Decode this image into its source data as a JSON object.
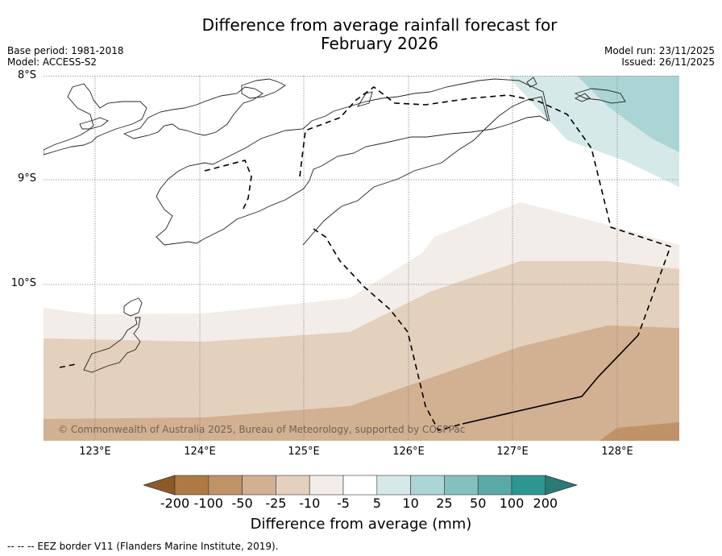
{
  "title": {
    "line1": "Difference from average rainfall forecast for",
    "line2": "February 2026"
  },
  "meta_left": {
    "base_period": "Base period: 1981-2018",
    "model": "Model: ACCESS-S2"
  },
  "meta_right": {
    "model_run": "Model run: 23/11/2025",
    "issued": "Issued: 26/11/2025"
  },
  "map": {
    "lat_labels": [
      "8°S",
      "9°S",
      "10°S"
    ],
    "lon_labels": [
      "123°E",
      "124°E",
      "125°E",
      "126°E",
      "127°E",
      "128°E"
    ],
    "extent": {
      "lon_min": 122.5,
      "lon_max": 128.6,
      "lat_min": -11.5,
      "lat_max": -8.0
    },
    "copyright": "© Commonwealth of Australia 2025, Bureau of Meteorology, supported by COSPPac"
  },
  "colorbar": {
    "ticks": [
      "-200",
      "-100",
      "-50",
      "-25",
      "-10",
      "-5",
      "5",
      "10",
      "25",
      "50",
      "100",
      "200"
    ],
    "colors": {
      "under": "#8c5a28",
      "bins": [
        "#ad7a44",
        "#c09268",
        "#d2b092",
        "#e3d0bd",
        "#f2ede8",
        "#ffffff",
        "#d5e9e8",
        "#abd5d4",
        "#84c0bd",
        "#5ba9a7",
        "#2d9691"
      ],
      "over": "#2a7a76"
    },
    "label": "Difference from average (mm)"
  },
  "footer": "--  --  -- EEZ border V11 (Flanders Marine Institute, 2019)."
}
